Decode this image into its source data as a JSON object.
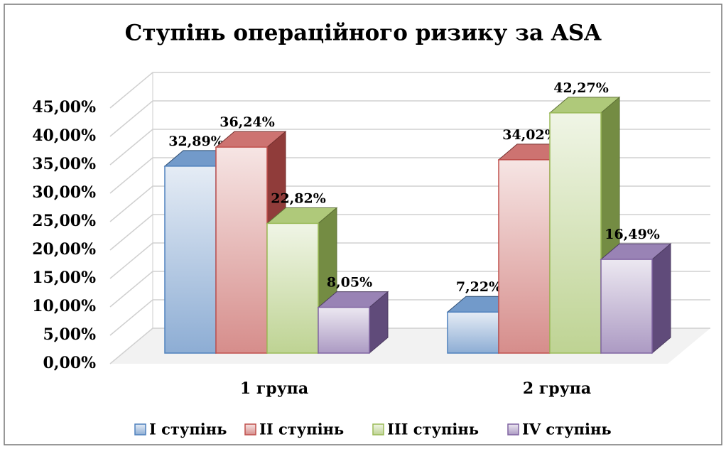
{
  "chart_data": {
    "type": "bar3d",
    "title": "Ступінь операційного ризику за ASA",
    "categories": [
      "1 група",
      "2 група"
    ],
    "series": [
      {
        "name": "І ступінь",
        "color": "#4f81bd",
        "values": [
          32.89,
          7.22
        ],
        "value_labels": [
          "32,89%",
          "7,22%"
        ]
      },
      {
        "name": "ІІ ступінь",
        "color": "#c0504d",
        "values": [
          36.24,
          34.02
        ],
        "value_labels": [
          "36,24%",
          "34,02%"
        ]
      },
      {
        "name": "ІІІ ступінь",
        "color": "#9bbb59",
        "values": [
          22.82,
          42.27
        ],
        "value_labels": [
          "22,82%",
          "42,27%"
        ]
      },
      {
        "name": "IV ступінь",
        "color": "#8064a2",
        "values": [
          8.05,
          16.49
        ],
        "value_labels": [
          "8,05%",
          "16,49%"
        ]
      }
    ],
    "ylim": [
      0,
      45
    ],
    "yticks": [
      {
        "value": 0,
        "label": "0,00%"
      },
      {
        "value": 5,
        "label": "5,00%"
      },
      {
        "value": 10,
        "label": "10,00%"
      },
      {
        "value": 15,
        "label": "15,00%"
      },
      {
        "value": 20,
        "label": "20,00%"
      },
      {
        "value": 25,
        "label": "25,00%"
      },
      {
        "value": 30,
        "label": "30,00%"
      },
      {
        "value": 35,
        "label": "35,00%"
      },
      {
        "value": 40,
        "label": "40,00%"
      },
      {
        "value": 45,
        "label": "45,00%"
      }
    ],
    "grid": true,
    "legend": "bottom"
  }
}
